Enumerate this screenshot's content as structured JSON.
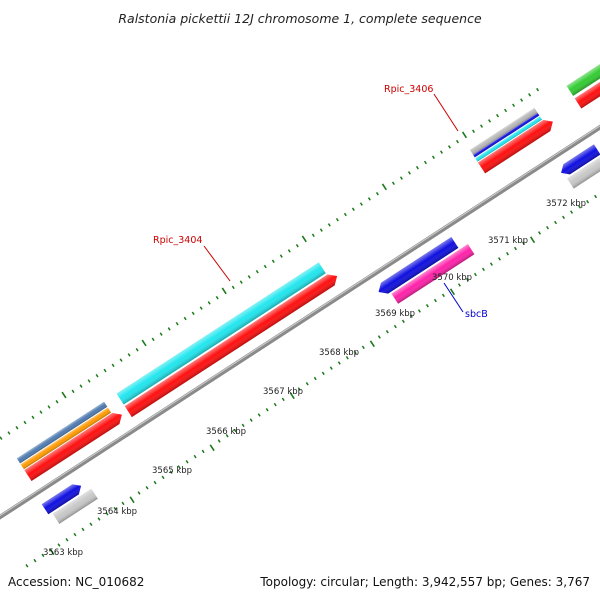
{
  "title": "Ralstonia pickettii 12J chromosome 1, complete sequence",
  "footer": {
    "accession": "Accession: NC_010682",
    "summary": "Topology: circular; Length: 3,942,557 bp; Genes: 3,767"
  },
  "colors": {
    "backbone": "#8a8a8a",
    "tick": "#1a7a1a",
    "label_red": "#cc0000",
    "label_blue": "#0000cc"
  },
  "scale_labels": [
    {
      "kbp": 3563,
      "text": "3563 kbp"
    },
    {
      "kbp": 3564,
      "text": "3564 kbp"
    },
    {
      "kbp": 3565,
      "text": "3565 kbp"
    },
    {
      "kbp": 3566,
      "text": "3566 kbp"
    },
    {
      "kbp": 3567,
      "text": "3567 kbp"
    },
    {
      "kbp": 3568,
      "text": "3568 kbp"
    },
    {
      "kbp": 3569,
      "text": "3569 kbp"
    },
    {
      "kbp": 3570,
      "text": "3570 kbp"
    },
    {
      "kbp": 3571,
      "text": "3571 kbp"
    },
    {
      "kbp": 3572,
      "text": "3572 kbp"
    }
  ],
  "gene_labels": [
    {
      "name": "Rpic_3404",
      "color": "#cc0000"
    },
    {
      "name": "Rpic_3406",
      "color": "#cc0000"
    },
    {
      "name": "sbcB",
      "color": "#0000cc"
    }
  ],
  "features": [
    {
      "name": "feature-blue-3563",
      "color": "#1010e0",
      "arrow": "right"
    },
    {
      "name": "feature-grey-3563",
      "color": "#c8c8c8",
      "arrow": "none"
    },
    {
      "name": "feature-steelblue-3565",
      "color": "#4f7bb0",
      "arrow": "none"
    },
    {
      "name": "feature-orange-3565",
      "color": "#ff9900",
      "arrow": "none"
    },
    {
      "name": "feature-red-3565",
      "color": "#ff1010",
      "arrow": "right"
    },
    {
      "name": "feature-cyan-rpic3404",
      "color": "#22e6ee",
      "arrow": "none"
    },
    {
      "name": "feature-red-rpic3404",
      "color": "#ff1010",
      "arrow": "right"
    },
    {
      "name": "feature-blue-sbcb",
      "color": "#1010e0",
      "arrow": "left"
    },
    {
      "name": "feature-magenta-sbcb",
      "color": "#ff22aa",
      "arrow": "none"
    },
    {
      "name": "feature-grey-rpic3406",
      "color": "#b8b8b8",
      "arrow": "none"
    },
    {
      "name": "feature-blue-rpic3406",
      "color": "#1010e0",
      "arrow": "none"
    },
    {
      "name": "feature-cyan-rpic3406",
      "color": "#22e6ee",
      "arrow": "none"
    },
    {
      "name": "feature-red-rpic3406",
      "color": "#ff1010",
      "arrow": "right"
    },
    {
      "name": "feature-blue-3572",
      "color": "#1010e0",
      "arrow": "left"
    },
    {
      "name": "feature-grey-3572",
      "color": "#c8c8c8",
      "arrow": "none"
    },
    {
      "name": "feature-green-3573",
      "color": "#33cc33",
      "arrow": "none"
    },
    {
      "name": "feature-red-3573",
      "color": "#ff1010",
      "arrow": "right"
    }
  ]
}
